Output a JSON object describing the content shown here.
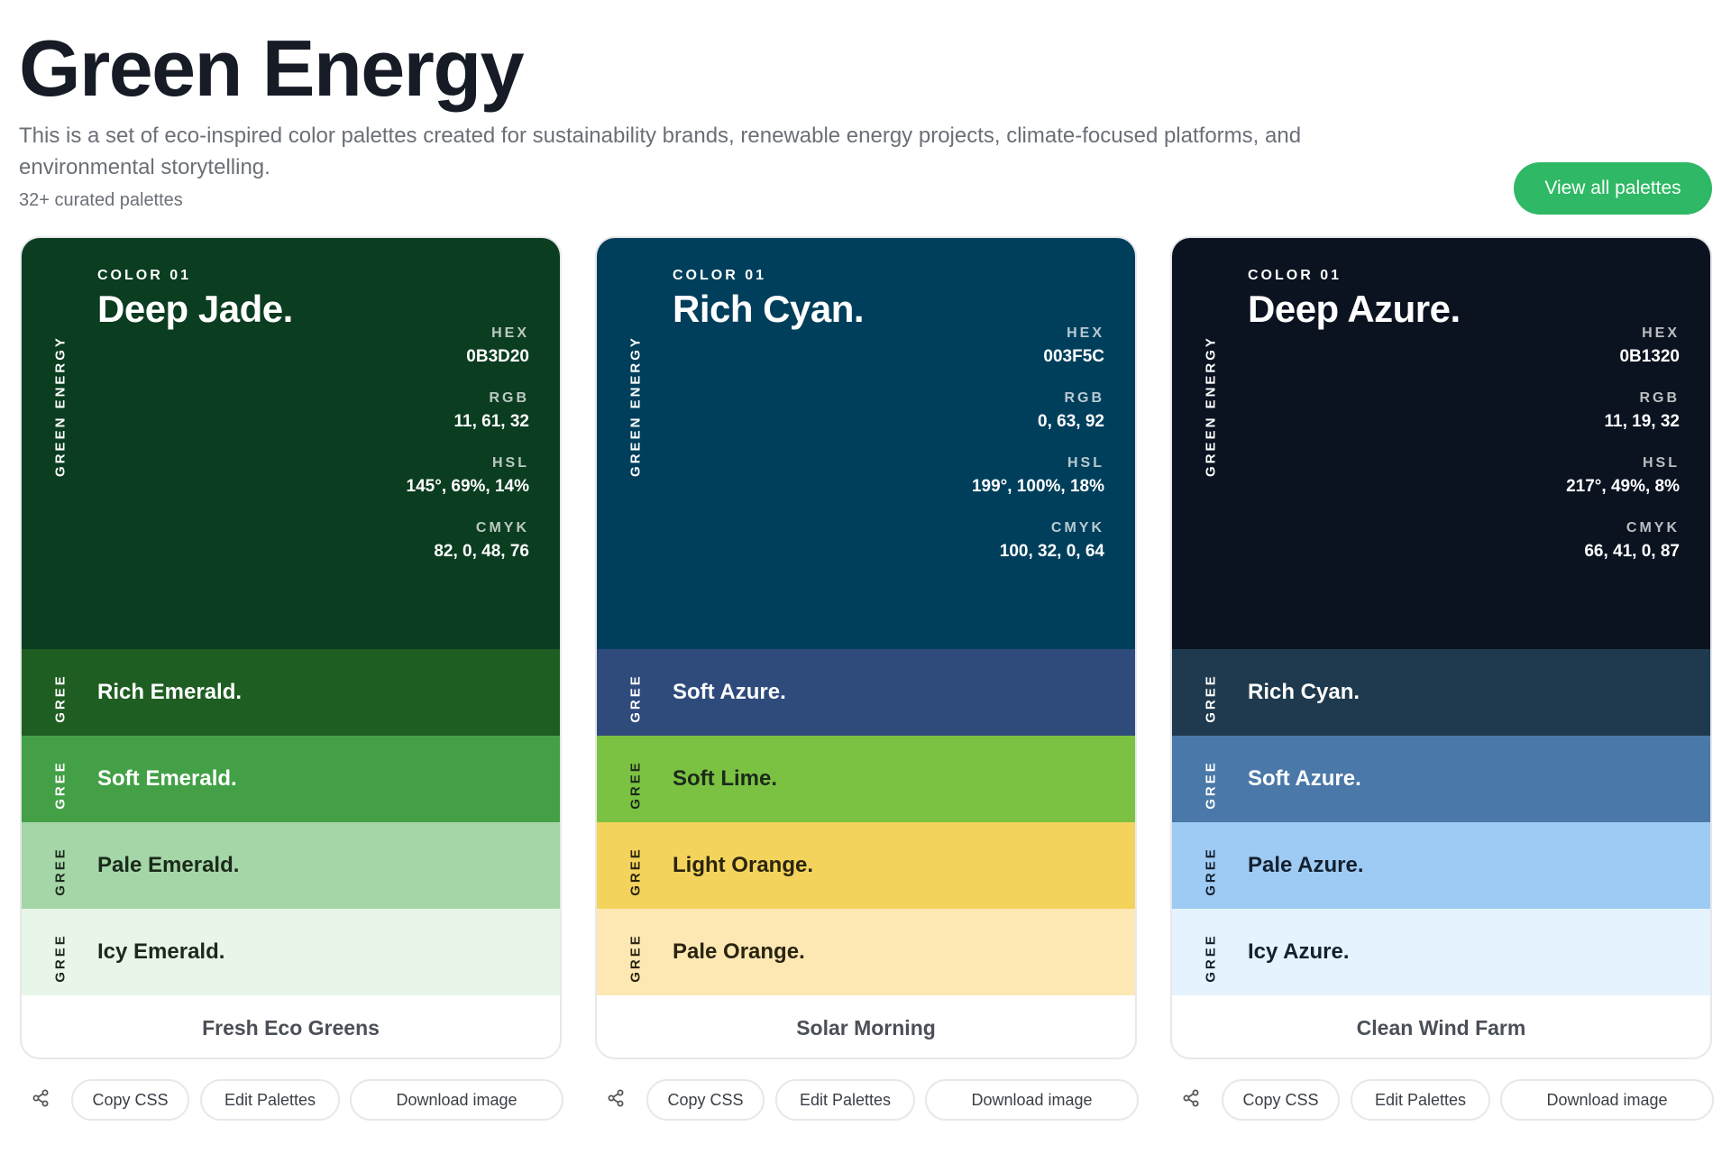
{
  "header": {
    "title": "Green Energy",
    "description": "This is a set of eco-inspired color palettes created for sustainability brands, renewable energy projects, climate-focused platforms, and environmental storytelling.",
    "count": "32+ curated palettes",
    "view_all_label": "View all palettes"
  },
  "palettes": [
    {
      "name": "Fresh Eco Greens",
      "side_label": "GREEN ENERGY",
      "short_label": "GREE",
      "main": {
        "number": "COLOR 01",
        "name": "Deep Jade.",
        "color": "#0B3D20",
        "text_color": "#ffffff",
        "hex_label": "HEX",
        "hex": "0B3D20",
        "rgb_label": "RGB",
        "rgb": "11, 61, 32",
        "hsl_label": "HSL",
        "hsl": "145°, 69%, 14%",
        "cmyk_label": "CMYK",
        "cmyk": "82, 0, 48, 76"
      },
      "stripes": [
        {
          "name": "Rich Emerald.",
          "color": "#1f5e22",
          "text_color": "#ffffff"
        },
        {
          "name": "Soft Emerald.",
          "color": "#43a047",
          "text_color": "#ffffff"
        },
        {
          "name": "Pale Emerald.",
          "color": "#a5d6a7",
          "text_color": "#1b2a1c"
        },
        {
          "name": "Icy Emerald.",
          "color": "#e8f5e9",
          "text_color": "#1b2a1c"
        }
      ],
      "actions": {
        "copy_css": "Copy CSS",
        "edit": "Edit Palettes",
        "download": "Download image"
      }
    },
    {
      "name": "Solar Morning",
      "side_label": "GREEN ENERGY",
      "short_label": "GREE",
      "main": {
        "number": "COLOR 01",
        "name": "Rich Cyan.",
        "color": "#003F5C",
        "text_color": "#ffffff",
        "hex_label": "HEX",
        "hex": "003F5C",
        "rgb_label": "RGB",
        "rgb": "0, 63, 92",
        "hsl_label": "HSL",
        "hsl": "199°, 100%, 18%",
        "cmyk_label": "CMYK",
        "cmyk": "100, 32, 0, 64"
      },
      "stripes": [
        {
          "name": "Soft Azure.",
          "color": "#2f4b7c",
          "text_color": "#ffffff"
        },
        {
          "name": "Soft Lime.",
          "color": "#7cc242",
          "text_color": "#1b2a1c"
        },
        {
          "name": "Light Orange.",
          "color": "#f3d35b",
          "text_color": "#2a2410"
        },
        {
          "name": "Pale Orange.",
          "color": "#fde8b4",
          "text_color": "#2a2410"
        }
      ],
      "actions": {
        "copy_css": "Copy CSS",
        "edit": "Edit Palettes",
        "download": "Download image"
      }
    },
    {
      "name": "Clean Wind Farm",
      "side_label": "GREEN ENERGY",
      "short_label": "GREE",
      "main": {
        "number": "COLOR 01",
        "name": "Deep Azure.",
        "color": "#0B1320",
        "text_color": "#ffffff",
        "hex_label": "HEX",
        "hex": "0B1320",
        "rgb_label": "RGB",
        "rgb": "11, 19, 32",
        "hsl_label": "HSL",
        "hsl": "217°, 49%, 8%",
        "cmyk_label": "CMYK",
        "cmyk": "66, 41, 0, 87"
      },
      "stripes": [
        {
          "name": "Rich Cyan.",
          "color": "#1f3a4e",
          "text_color": "#ffffff"
        },
        {
          "name": "Soft Azure.",
          "color": "#4a78a8",
          "text_color": "#ffffff"
        },
        {
          "name": "Pale Azure.",
          "color": "#9ecbf3",
          "text_color": "#142030"
        },
        {
          "name": "Icy Azure.",
          "color": "#e4f3fd",
          "text_color": "#142030"
        }
      ],
      "actions": {
        "copy_css": "Copy CSS",
        "edit": "Edit Palettes",
        "download": "Download image"
      }
    }
  ],
  "icons": {
    "share": "share-icon"
  }
}
